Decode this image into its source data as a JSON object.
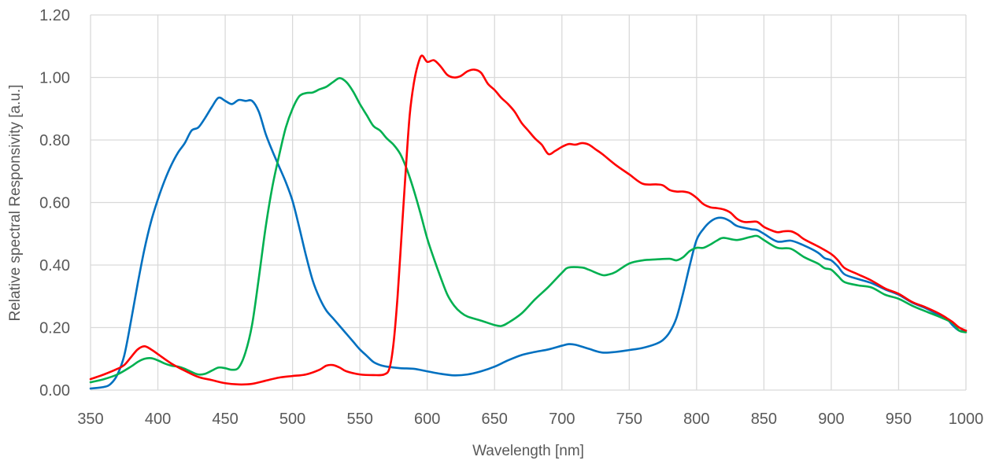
{
  "chart_data": {
    "type": "line",
    "title": "",
    "xlabel": "Wavelength [nm]",
    "ylabel": "Relative spectral Responsivity [a.u.]",
    "xlim": [
      350,
      1000
    ],
    "ylim": [
      0,
      1.2
    ],
    "xticks": [
      "350",
      "400",
      "450",
      "500",
      "550",
      "600",
      "650",
      "700",
      "750",
      "800",
      "850",
      "900",
      "950",
      "1000"
    ],
    "yticks": [
      "0.00",
      "0.20",
      "0.40",
      "0.60",
      "0.80",
      "1.00",
      "1.20"
    ],
    "grid": true,
    "legend": "none",
    "series": [
      {
        "color": "#0070c0",
        "points": [
          [
            350,
            0.005
          ],
          [
            360,
            0.01
          ],
          [
            365,
            0.02
          ],
          [
            370,
            0.05
          ],
          [
            375,
            0.11
          ],
          [
            380,
            0.22
          ],
          [
            385,
            0.34
          ],
          [
            390,
            0.45
          ],
          [
            395,
            0.54
          ],
          [
            400,
            0.61
          ],
          [
            405,
            0.67
          ],
          [
            410,
            0.72
          ],
          [
            415,
            0.76
          ],
          [
            420,
            0.79
          ],
          [
            425,
            0.83
          ],
          [
            430,
            0.84
          ],
          [
            435,
            0.87
          ],
          [
            440,
            0.905
          ],
          [
            445,
            0.935
          ],
          [
            450,
            0.925
          ],
          [
            455,
            0.915
          ],
          [
            460,
            0.928
          ],
          [
            465,
            0.925
          ],
          [
            470,
            0.925
          ],
          [
            475,
            0.89
          ],
          [
            480,
            0.82
          ],
          [
            485,
            0.765
          ],
          [
            490,
            0.715
          ],
          [
            495,
            0.665
          ],
          [
            500,
            0.605
          ],
          [
            505,
            0.52
          ],
          [
            510,
            0.43
          ],
          [
            515,
            0.35
          ],
          [
            520,
            0.295
          ],
          [
            525,
            0.255
          ],
          [
            530,
            0.23
          ],
          [
            535,
            0.205
          ],
          [
            540,
            0.18
          ],
          [
            545,
            0.155
          ],
          [
            550,
            0.13
          ],
          [
            555,
            0.11
          ],
          [
            560,
            0.09
          ],
          [
            565,
            0.08
          ],
          [
            570,
            0.075
          ],
          [
            580,
            0.07
          ],
          [
            590,
            0.068
          ],
          [
            600,
            0.06
          ],
          [
            610,
            0.052
          ],
          [
            620,
            0.047
          ],
          [
            630,
            0.05
          ],
          [
            640,
            0.06
          ],
          [
            650,
            0.075
          ],
          [
            660,
            0.095
          ],
          [
            670,
            0.112
          ],
          [
            680,
            0.122
          ],
          [
            690,
            0.13
          ],
          [
            700,
            0.142
          ],
          [
            705,
            0.147
          ],
          [
            710,
            0.145
          ],
          [
            720,
            0.132
          ],
          [
            730,
            0.12
          ],
          [
            740,
            0.122
          ],
          [
            750,
            0.128
          ],
          [
            760,
            0.135
          ],
          [
            770,
            0.148
          ],
          [
            775,
            0.16
          ],
          [
            780,
            0.185
          ],
          [
            785,
            0.23
          ],
          [
            790,
            0.31
          ],
          [
            795,
            0.4
          ],
          [
            800,
            0.48
          ],
          [
            805,
            0.515
          ],
          [
            810,
            0.538
          ],
          [
            815,
            0.55
          ],
          [
            820,
            0.55
          ],
          [
            825,
            0.54
          ],
          [
            830,
            0.525
          ],
          [
            840,
            0.515
          ],
          [
            845,
            0.512
          ],
          [
            850,
            0.5
          ],
          [
            860,
            0.475
          ],
          [
            870,
            0.478
          ],
          [
            880,
            0.462
          ],
          [
            890,
            0.44
          ],
          [
            895,
            0.422
          ],
          [
            900,
            0.415
          ],
          [
            905,
            0.395
          ],
          [
            910,
            0.37
          ],
          [
            920,
            0.355
          ],
          [
            930,
            0.342
          ],
          [
            940,
            0.322
          ],
          [
            950,
            0.305
          ],
          [
            960,
            0.28
          ],
          [
            970,
            0.262
          ],
          [
            980,
            0.24
          ],
          [
            985,
            0.232
          ],
          [
            990,
            0.208
          ],
          [
            995,
            0.19
          ],
          [
            1000,
            0.19
          ]
        ]
      },
      {
        "color": "#00b050",
        "points": [
          [
            350,
            0.025
          ],
          [
            360,
            0.035
          ],
          [
            370,
            0.05
          ],
          [
            380,
            0.075
          ],
          [
            385,
            0.09
          ],
          [
            390,
            0.1
          ],
          [
            395,
            0.102
          ],
          [
            400,
            0.095
          ],
          [
            405,
            0.085
          ],
          [
            410,
            0.078
          ],
          [
            415,
            0.075
          ],
          [
            420,
            0.068
          ],
          [
            425,
            0.058
          ],
          [
            430,
            0.05
          ],
          [
            435,
            0.052
          ],
          [
            440,
            0.062
          ],
          [
            445,
            0.072
          ],
          [
            450,
            0.07
          ],
          [
            455,
            0.065
          ],
          [
            460,
            0.072
          ],
          [
            465,
            0.12
          ],
          [
            470,
            0.21
          ],
          [
            475,
            0.36
          ],
          [
            480,
            0.52
          ],
          [
            485,
            0.65
          ],
          [
            490,
            0.75
          ],
          [
            495,
            0.84
          ],
          [
            500,
            0.9
          ],
          [
            505,
            0.94
          ],
          [
            510,
            0.95
          ],
          [
            515,
            0.952
          ],
          [
            520,
            0.962
          ],
          [
            525,
            0.97
          ],
          [
            530,
            0.985
          ],
          [
            535,
            0.998
          ],
          [
            540,
            0.985
          ],
          [
            545,
            0.955
          ],
          [
            550,
            0.915
          ],
          [
            555,
            0.88
          ],
          [
            560,
            0.845
          ],
          [
            565,
            0.83
          ],
          [
            570,
            0.805
          ],
          [
            575,
            0.785
          ],
          [
            580,
            0.755
          ],
          [
            585,
            0.705
          ],
          [
            590,
            0.64
          ],
          [
            595,
            0.565
          ],
          [
            600,
            0.485
          ],
          [
            605,
            0.42
          ],
          [
            610,
            0.36
          ],
          [
            615,
            0.305
          ],
          [
            620,
            0.27
          ],
          [
            625,
            0.248
          ],
          [
            630,
            0.235
          ],
          [
            640,
            0.222
          ],
          [
            650,
            0.208
          ],
          [
            655,
            0.205
          ],
          [
            660,
            0.215
          ],
          [
            670,
            0.245
          ],
          [
            680,
            0.29
          ],
          [
            690,
            0.33
          ],
          [
            700,
            0.375
          ],
          [
            705,
            0.392
          ],
          [
            715,
            0.392
          ],
          [
            720,
            0.385
          ],
          [
            730,
            0.368
          ],
          [
            735,
            0.37
          ],
          [
            740,
            0.378
          ],
          [
            750,
            0.405
          ],
          [
            760,
            0.415
          ],
          [
            770,
            0.418
          ],
          [
            780,
            0.42
          ],
          [
            785,
            0.415
          ],
          [
            790,
            0.425
          ],
          [
            795,
            0.445
          ],
          [
            800,
            0.455
          ],
          [
            805,
            0.455
          ],
          [
            810,
            0.465
          ],
          [
            815,
            0.478
          ],
          [
            820,
            0.487
          ],
          [
            830,
            0.48
          ],
          [
            840,
            0.49
          ],
          [
            845,
            0.493
          ],
          [
            850,
            0.48
          ],
          [
            860,
            0.455
          ],
          [
            870,
            0.452
          ],
          [
            880,
            0.425
          ],
          [
            890,
            0.405
          ],
          [
            895,
            0.39
          ],
          [
            900,
            0.385
          ],
          [
            905,
            0.365
          ],
          [
            910,
            0.345
          ],
          [
            920,
            0.335
          ],
          [
            930,
            0.328
          ],
          [
            940,
            0.305
          ],
          [
            950,
            0.292
          ],
          [
            960,
            0.27
          ],
          [
            970,
            0.252
          ],
          [
            980,
            0.235
          ],
          [
            990,
            0.215
          ],
          [
            995,
            0.19
          ],
          [
            1000,
            0.185
          ]
        ]
      },
      {
        "color": "#ff0000",
        "points": [
          [
            350,
            0.035
          ],
          [
            360,
            0.05
          ],
          [
            370,
            0.068
          ],
          [
            375,
            0.08
          ],
          [
            380,
            0.105
          ],
          [
            385,
            0.13
          ],
          [
            390,
            0.14
          ],
          [
            395,
            0.13
          ],
          [
            400,
            0.115
          ],
          [
            410,
            0.085
          ],
          [
            420,
            0.062
          ],
          [
            430,
            0.042
          ],
          [
            440,
            0.032
          ],
          [
            450,
            0.022
          ],
          [
            460,
            0.018
          ],
          [
            470,
            0.02
          ],
          [
            480,
            0.03
          ],
          [
            490,
            0.04
          ],
          [
            500,
            0.045
          ],
          [
            510,
            0.05
          ],
          [
            520,
            0.065
          ],
          [
            525,
            0.078
          ],
          [
            530,
            0.08
          ],
          [
            535,
            0.072
          ],
          [
            540,
            0.06
          ],
          [
            550,
            0.05
          ],
          [
            560,
            0.048
          ],
          [
            568,
            0.05
          ],
          [
            572,
            0.07
          ],
          [
            575,
            0.15
          ],
          [
            578,
            0.3
          ],
          [
            581,
            0.5
          ],
          [
            584,
            0.7
          ],
          [
            587,
            0.88
          ],
          [
            590,
            0.98
          ],
          [
            593,
            1.04
          ],
          [
            596,
            1.07
          ],
          [
            600,
            1.05
          ],
          [
            605,
            1.055
          ],
          [
            610,
            1.035
          ],
          [
            615,
            1.008
          ],
          [
            620,
            1.0
          ],
          [
            625,
            1.005
          ],
          [
            630,
            1.02
          ],
          [
            635,
            1.025
          ],
          [
            640,
            1.015
          ],
          [
            645,
            0.98
          ],
          [
            650,
            0.96
          ],
          [
            655,
            0.935
          ],
          [
            660,
            0.915
          ],
          [
            665,
            0.89
          ],
          [
            670,
            0.855
          ],
          [
            675,
            0.83
          ],
          [
            680,
            0.805
          ],
          [
            685,
            0.785
          ],
          [
            690,
            0.755
          ],
          [
            695,
            0.765
          ],
          [
            700,
            0.778
          ],
          [
            705,
            0.787
          ],
          [
            710,
            0.785
          ],
          [
            715,
            0.79
          ],
          [
            720,
            0.785
          ],
          [
            725,
            0.77
          ],
          [
            730,
            0.755
          ],
          [
            740,
            0.72
          ],
          [
            750,
            0.69
          ],
          [
            760,
            0.66
          ],
          [
            770,
            0.658
          ],
          [
            775,
            0.655
          ],
          [
            780,
            0.64
          ],
          [
            785,
            0.635
          ],
          [
            790,
            0.635
          ],
          [
            795,
            0.63
          ],
          [
            800,
            0.615
          ],
          [
            805,
            0.595
          ],
          [
            810,
            0.585
          ],
          [
            815,
            0.582
          ],
          [
            820,
            0.578
          ],
          [
            825,
            0.568
          ],
          [
            830,
            0.548
          ],
          [
            835,
            0.538
          ],
          [
            840,
            0.538
          ],
          [
            845,
            0.538
          ],
          [
            850,
            0.522
          ],
          [
            855,
            0.512
          ],
          [
            860,
            0.505
          ],
          [
            865,
            0.508
          ],
          [
            870,
            0.508
          ],
          [
            875,
            0.498
          ],
          [
            880,
            0.482
          ],
          [
            890,
            0.46
          ],
          [
            900,
            0.435
          ],
          [
            905,
            0.415
          ],
          [
            910,
            0.39
          ],
          [
            920,
            0.37
          ],
          [
            930,
            0.35
          ],
          [
            940,
            0.325
          ],
          [
            950,
            0.308
          ],
          [
            960,
            0.282
          ],
          [
            970,
            0.265
          ],
          [
            980,
            0.245
          ],
          [
            985,
            0.232
          ],
          [
            990,
            0.218
          ],
          [
            995,
            0.2
          ],
          [
            1000,
            0.19
          ]
        ]
      }
    ]
  }
}
